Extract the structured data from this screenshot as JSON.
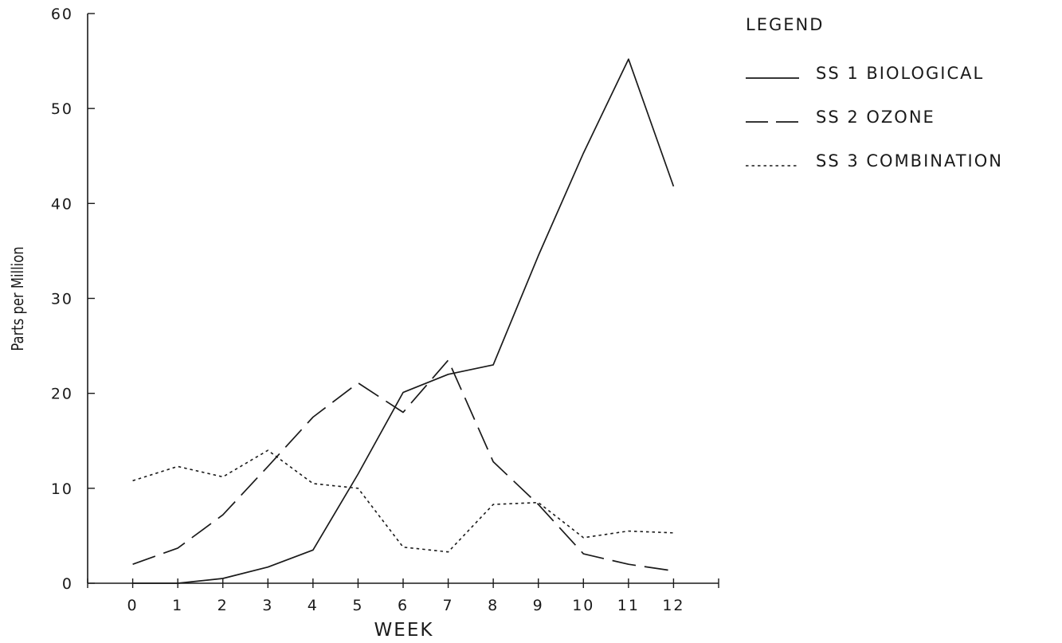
{
  "chart_data": {
    "type": "line",
    "title": "",
    "xlabel": "WEEK",
    "ylabel": "Parts per Million",
    "x": [
      0,
      1,
      2,
      3,
      4,
      5,
      6,
      7,
      8,
      9,
      10,
      11,
      12
    ],
    "x_tick_labels": [
      "0",
      "1",
      "2",
      "3",
      "4",
      "5",
      "6",
      "7",
      "8",
      "9",
      "10",
      "11",
      "12"
    ],
    "y_ticks": [
      0,
      10,
      20,
      30,
      40,
      50,
      60
    ],
    "y_tick_labels": [
      "0",
      "10",
      "20",
      "30",
      "40",
      "50",
      "60"
    ],
    "xlim": [
      -1,
      13
    ],
    "ylim": [
      0,
      60
    ],
    "grid": false,
    "legend_title": "LEGEND",
    "legend_position": "top-right outside plot",
    "series": [
      {
        "name": "SS 1 BIOLOGICAL",
        "style": "solid",
        "values": [
          0,
          0,
          0.5,
          1.7,
          3.5,
          11.5,
          20.1,
          22,
          23,
          34.5,
          45.3,
          55.2,
          41.8
        ]
      },
      {
        "name": "SS 2 OZONE",
        "style": "dashed",
        "values": [
          2,
          3.7,
          7.2,
          12.3,
          17.5,
          21.1,
          18,
          23.5,
          12.8,
          8.3,
          3.1,
          2,
          1.3
        ]
      },
      {
        "name": "SS 3 COMBINATION",
        "style": "dotted",
        "values": [
          10.8,
          12.3,
          11.2,
          14,
          10.5,
          10,
          3.8,
          3.3,
          8.3,
          8.5,
          4.8,
          5.5,
          5.3
        ]
      }
    ]
  }
}
